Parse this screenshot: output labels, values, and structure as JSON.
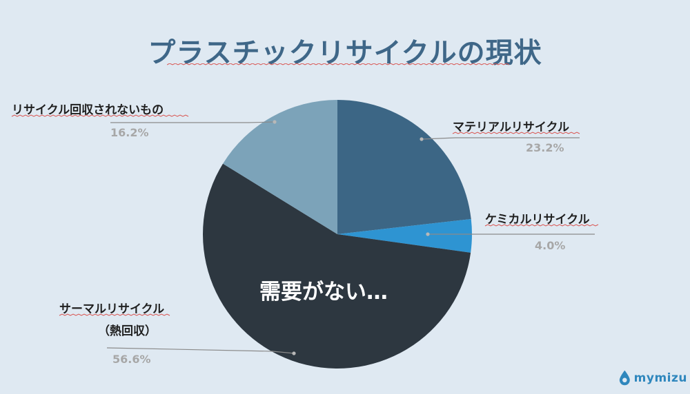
{
  "title": "プラスチックリサイクルの現状",
  "center_label": "需要がない…",
  "logo_text": "mymizu",
  "colors": {
    "background": "#dfe9f2",
    "title": "#3f6788",
    "material": "#3c6685",
    "chemical": "#2e94d2",
    "thermal": "#2d3740",
    "not_collected": "#7ca3b9"
  },
  "chart_data": {
    "type": "pie",
    "slices": [
      {
        "label": "マテリアルリサイクル",
        "value": 23.2,
        "value_label": "23.2%",
        "color": "#3c6685"
      },
      {
        "label": "ケミカルリサイクル",
        "value": 4.0,
        "value_label": "4.0%",
        "color": "#2e94d2"
      },
      {
        "label": "サーマルリサイクル",
        "sublabel": "（熱回収）",
        "value": 56.6,
        "value_label": "56.6%",
        "color": "#2d3740"
      },
      {
        "label": "リサイクル回収されないもの",
        "value": 16.2,
        "value_label": "16.2%",
        "color": "#7ca3b9"
      }
    ]
  }
}
